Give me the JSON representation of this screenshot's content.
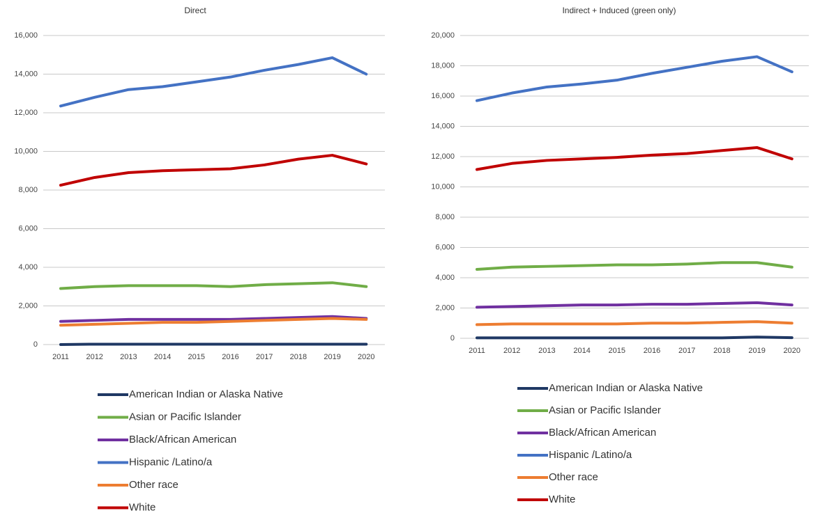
{
  "chart_data": [
    {
      "type": "line",
      "title": "Direct",
      "categories": [
        "2011",
        "2012",
        "2013",
        "2014",
        "2015",
        "2016",
        "2017",
        "2018",
        "2019",
        "2020"
      ],
      "ylim": [
        0,
        16000
      ],
      "yticks": [
        0,
        {
          "value": 2000,
          "label": "2,000"
        },
        {
          "value": 4000,
          "label": "4,000"
        },
        {
          "value": 6000,
          "label": "6,000"
        },
        {
          "value": 8000,
          "label": "8,000"
        },
        {
          "value": 10000,
          "label": "10,000"
        },
        {
          "value": 12000,
          "label": "12,000"
        },
        {
          "value": 14000,
          "label": "14,000"
        },
        {
          "value": 16000,
          "label": "16,000"
        }
      ],
      "grid": true,
      "series": [
        {
          "name": "American Indian or Alaska Native",
          "color": "#1f3864",
          "values": [
            0,
            20,
            20,
            20,
            20,
            20,
            20,
            20,
            20,
            20
          ]
        },
        {
          "name": "Asian or Pacific Islander",
          "color": "#70ad47",
          "values": [
            2900,
            3000,
            3050,
            3050,
            3050,
            3000,
            3100,
            3150,
            3200,
            3000
          ]
        },
        {
          "name": "Black/African American",
          "color": "#7030a0",
          "values": [
            1200,
            1250,
            1300,
            1300,
            1300,
            1300,
            1350,
            1400,
            1450,
            1350
          ]
        },
        {
          "name": "Hispanic /Latino/a",
          "color": "#4472c4",
          "values": [
            12350,
            12800,
            13200,
            13350,
            13600,
            13850,
            14200,
            14500,
            14850,
            14000
          ]
        },
        {
          "name": "Other race",
          "color": "#ed7d31",
          "values": [
            1000,
            1050,
            1100,
            1150,
            1150,
            1200,
            1250,
            1300,
            1350,
            1300
          ]
        },
        {
          "name": "White",
          "color": "#c00000",
          "values": [
            8250,
            8650,
            8900,
            9000,
            9050,
            9100,
            9300,
            9600,
            9800,
            9350
          ]
        }
      ]
    },
    {
      "type": "line",
      "title": "Indirect + Induced (green only)",
      "categories": [
        "2011",
        "2012",
        "2013",
        "2014",
        "2015",
        "2016",
        "2017",
        "2018",
        "2019",
        "2020"
      ],
      "ylim": [
        0,
        20000
      ],
      "yticks": [
        0,
        {
          "value": 2000,
          "label": "2,000"
        },
        {
          "value": 4000,
          "label": "4,000"
        },
        {
          "value": 6000,
          "label": "6,000"
        },
        {
          "value": 8000,
          "label": "8,000"
        },
        {
          "value": 10000,
          "label": "10,000"
        },
        {
          "value": 12000,
          "label": "12,000"
        },
        {
          "value": 14000,
          "label": "14,000"
        },
        {
          "value": 16000,
          "label": "16,000"
        },
        {
          "value": 18000,
          "label": "18,000"
        },
        {
          "value": 20000,
          "label": "20,000"
        }
      ],
      "grid": true,
      "series": [
        {
          "name": "American Indian or Alaska Native",
          "color": "#1f3864",
          "values": [
            30,
            30,
            30,
            30,
            30,
            30,
            30,
            30,
            80,
            40
          ]
        },
        {
          "name": "Asian or Pacific Islander",
          "color": "#70ad47",
          "values": [
            4550,
            4700,
            4750,
            4800,
            4850,
            4850,
            4900,
            5000,
            5000,
            4700
          ]
        },
        {
          "name": "Black/African American",
          "color": "#7030a0",
          "values": [
            2050,
            2100,
            2150,
            2200,
            2200,
            2250,
            2250,
            2300,
            2350,
            2200
          ]
        },
        {
          "name": "Hispanic /Latino/a",
          "color": "#4472c4",
          "values": [
            15700,
            16200,
            16600,
            16800,
            17050,
            17500,
            17900,
            18300,
            18600,
            17600
          ]
        },
        {
          "name": "Other race",
          "color": "#ed7d31",
          "values": [
            900,
            950,
            950,
            950,
            950,
            1000,
            1000,
            1050,
            1100,
            1000
          ]
        },
        {
          "name": "White",
          "color": "#c00000",
          "values": [
            11150,
            11550,
            11750,
            11850,
            11950,
            12100,
            12200,
            12400,
            12600,
            11850
          ]
        }
      ]
    }
  ]
}
